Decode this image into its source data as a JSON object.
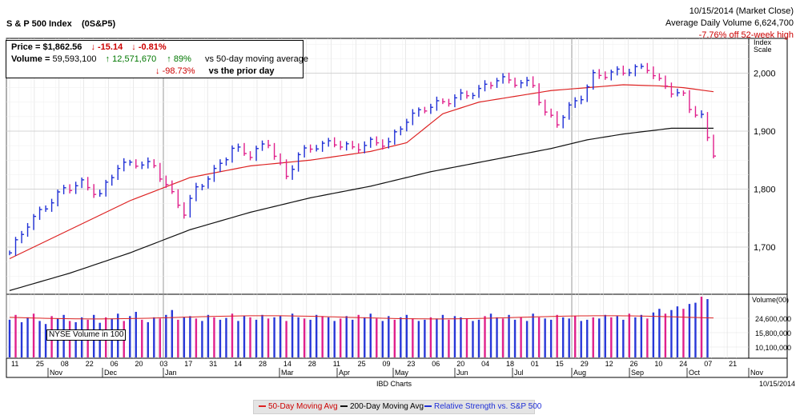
{
  "header": {
    "title": "S & P 500 Index",
    "symbol": "(0S&P5)",
    "date_line": "10/15/2014 (Market Close)",
    "avg_volume_line": "Average Daily Volume 6,624,700",
    "off_high_line": "-7.76% off 52-week high"
  },
  "info": {
    "price_label": "Price =",
    "price": "$1,862.56",
    "price_change": "-15.14",
    "price_change_pct": "-0.81%",
    "volume_label": "Volume =",
    "volume": "59,593,100",
    "volume_change": "12,571,670",
    "volume_change_pct": "89%",
    "vs_50": "vs 50-day moving average",
    "prior_pct": "-98.73%",
    "vs_prior": "vs the prior day"
  },
  "nyse_label": "NYSE Volume in 100",
  "footer": {
    "source": "IBD Charts",
    "date": "10/15/2014"
  },
  "legend": {
    "ma50": "50-Day Moving Avg",
    "ma200": "200-Day Moving Avg",
    "rs": "Relative Strength vs. S&P 500"
  },
  "colors": {
    "up": "#1f2fd6",
    "down": "#e0208c",
    "ma50": "#dd2222",
    "ma200": "#111111",
    "vol_blue": "#2838d8",
    "vol_pink": "#e0208c",
    "grid": "#d9d9d9"
  },
  "chart_data": {
    "type": "line",
    "price_axis": {
      "title_top": "Index",
      "title_bottom": "Scale",
      "ticks": [
        1700,
        1800,
        1900,
        2000
      ],
      "tick_labels": [
        "1,700",
        "1,800",
        "1,900",
        "2,000"
      ],
      "range": [
        1620,
        2060
      ]
    },
    "volume_axis": {
      "title": "Volume(00)",
      "tick_labels": [
        "24,600,000",
        "15,800,000",
        "10,100,000"
      ]
    },
    "day_labels": [
      "11",
      "25",
      "08",
      "22",
      "06",
      "20",
      "03",
      "17",
      "31",
      "14",
      "28",
      "14",
      "28",
      "11",
      "25",
      "09",
      "23",
      "06",
      "20",
      "04",
      "18",
      "01",
      "15",
      "29",
      "12",
      "26",
      "10",
      "24",
      "07",
      "21"
    ],
    "month_labels": [
      "Nov",
      "Dec",
      "Jan",
      "Mar",
      "Apr",
      "May",
      "Jun",
      "Jul",
      "Aug",
      "Sep",
      "Oct",
      "Nov"
    ],
    "price_path": [
      [
        0,
        1690
      ],
      [
        3,
        1740
      ],
      [
        6,
        1770
      ],
      [
        9,
        1800
      ],
      [
        12,
        1810
      ],
      [
        15,
        1790
      ],
      [
        18,
        1840
      ],
      [
        21,
        1845
      ],
      [
        24,
        1840
      ],
      [
        27,
        1790
      ],
      [
        29,
        1760
      ],
      [
        31,
        1800
      ],
      [
        34,
        1830
      ],
      [
        37,
        1870
      ],
      [
        40,
        1860
      ],
      [
        43,
        1880
      ],
      [
        46,
        1820
      ],
      [
        48,
        1860
      ],
      [
        51,
        1875
      ],
      [
        54,
        1880
      ],
      [
        57,
        1870
      ],
      [
        60,
        1880
      ],
      [
        63,
        1880
      ],
      [
        66,
        1920
      ],
      [
        69,
        1940
      ],
      [
        72,
        1950
      ],
      [
        75,
        1960
      ],
      [
        78,
        1970
      ],
      [
        81,
        1990
      ],
      [
        84,
        1985
      ],
      [
        87,
        1980
      ],
      [
        89,
        1930
      ],
      [
        91,
        1915
      ],
      [
        93,
        1940
      ],
      [
        95,
        1960
      ],
      [
        97,
        1995
      ],
      [
        100,
        2000
      ],
      [
        103,
        2005
      ],
      [
        106,
        2010
      ],
      [
        108,
        1985
      ],
      [
        110,
        1970
      ],
      [
        112,
        1960
      ],
      [
        113,
        1940
      ],
      [
        115,
        1925
      ],
      [
        116,
        1885
      ],
      [
        117,
        1862
      ]
    ],
    "ma50_path": [
      [
        0,
        1680
      ],
      [
        10,
        1730
      ],
      [
        20,
        1780
      ],
      [
        30,
        1820
      ],
      [
        40,
        1840
      ],
      [
        50,
        1850
      ],
      [
        60,
        1865
      ],
      [
        66,
        1880
      ],
      [
        72,
        1930
      ],
      [
        78,
        1950
      ],
      [
        84,
        1960
      ],
      [
        90,
        1970
      ],
      [
        96,
        1975
      ],
      [
        102,
        1980
      ],
      [
        108,
        1978
      ],
      [
        112,
        1975
      ],
      [
        117,
        1968
      ]
    ],
    "ma200_path": [
      [
        0,
        1625
      ],
      [
        10,
        1655
      ],
      [
        20,
        1690
      ],
      [
        30,
        1730
      ],
      [
        40,
        1760
      ],
      [
        50,
        1785
      ],
      [
        60,
        1805
      ],
      [
        70,
        1830
      ],
      [
        80,
        1850
      ],
      [
        90,
        1870
      ],
      [
        96,
        1885
      ],
      [
        102,
        1895
      ],
      [
        110,
        1905
      ],
      [
        117,
        1905
      ]
    ],
    "volume_index": [
      0.62,
      0.7,
      0.58,
      0.66,
      0.72,
      0.6,
      0.55,
      0.68,
      0.64,
      0.7,
      0.6,
      0.58,
      0.66,
      0.62,
      0.7,
      0.57,
      0.66,
      0.64,
      0.72,
      0.6,
      0.68,
      0.75,
      0.62,
      0.58,
      0.66,
      0.64,
      0.7,
      0.78,
      0.62,
      0.66,
      0.68,
      0.64,
      0.6,
      0.7,
      0.66,
      0.62,
      0.65,
      0.72,
      0.6,
      0.68,
      0.66,
      0.62,
      0.7,
      0.64,
      0.66,
      0.68,
      0.6,
      0.72,
      0.66,
      0.64,
      0.62,
      0.7,
      0.68,
      0.66,
      0.6,
      0.64,
      0.68,
      0.62,
      0.7,
      0.66,
      0.72,
      0.64,
      0.6,
      0.68,
      0.62,
      0.66,
      0.7,
      0.64,
      0.6,
      0.62,
      0.66,
      0.64,
      0.7,
      0.62,
      0.68,
      0.66,
      0.64,
      0.6,
      0.62,
      0.68,
      0.72,
      0.66,
      0.64,
      0.7,
      0.62,
      0.66,
      0.6,
      0.72,
      0.66,
      0.64,
      0.62,
      0.7,
      0.66,
      0.64,
      0.68,
      0.6,
      0.62,
      0.66,
      0.64,
      0.7,
      0.66,
      0.68,
      0.62,
      0.72,
      0.66,
      0.7,
      0.64,
      0.74,
      0.8,
      0.72,
      0.78,
      0.84,
      0.8,
      0.88,
      0.9,
      1.0,
      0.96
    ]
  }
}
